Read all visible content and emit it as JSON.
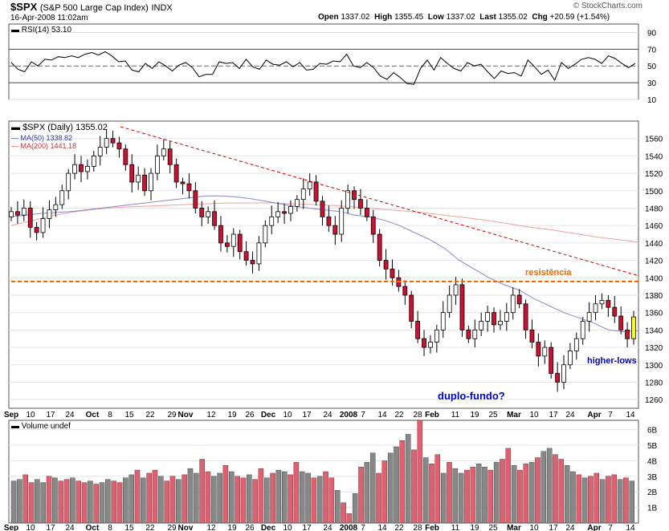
{
  "header": {
    "symbol": "$SPX",
    "name": "(S&P 500 Large Cap Index)",
    "exchange": "INDX",
    "datetime": "16-Apr-2008 11:02am",
    "open_label": "Open",
    "open": "1337.02",
    "high_label": "High",
    "high": "1355.45",
    "low_label": "Low",
    "low": "1337.02",
    "last_label": "Last",
    "last": "1355.02",
    "chg_label": "Chg",
    "chg": "+20.59 (+1.54%)",
    "watermark": "© StockCharts.com"
  },
  "rsi_panel": {
    "label": "RSI(14) 53.10",
    "ticks": [
      "90",
      "70",
      "50",
      "30",
      "10"
    ]
  },
  "price_panel": {
    "label": "$SPX (Daily) 1355.02",
    "ma50_label": "MA(50) 1338.82",
    "ma200_label": "MA(200) 1441.18",
    "annotations": {
      "resistance": "resistência",
      "double_bottom": "duplo-fundo?",
      "higher_lows": "higher-lows"
    }
  },
  "volume_panel": {
    "label": "Volume undef",
    "ticks": [
      "6B",
      "5B",
      "4B",
      "3B",
      "2B",
      "1B"
    ]
  },
  "x_axis": {
    "labels": [
      "Sep",
      "10",
      "17",
      "24",
      "Oct",
      "8",
      "15",
      "22",
      "29",
      "Nov",
      "12",
      "19",
      "26",
      "Dec",
      "10",
      "17",
      "24",
      "2008",
      "7",
      "14",
      "22",
      "28",
      "Feb",
      "11",
      "19",
      "25",
      "Mar",
      "10",
      "17",
      "24",
      "Apr",
      "7",
      "14"
    ]
  },
  "colors": {
    "up": "#ffffff",
    "down": "#cc1133",
    "ma50": "#8888cc",
    "ma200": "#f0a0a0",
    "resistance": "#ff6600",
    "trendline": "#cc0000",
    "annotation_blue": "#0000cc",
    "volume_up": "#888888",
    "volume_down": "#e06070",
    "last_candle": "#ffff00"
  },
  "chart_data": [
    {
      "type": "line",
      "title": "RSI(14) 53.10",
      "ylim": [
        10,
        100
      ],
      "yticks": [
        90,
        70,
        50,
        30,
        10
      ],
      "grid": true,
      "series": [
        {
          "name": "RSI(14)",
          "values": [
            54,
            46,
            43,
            55,
            50,
            58,
            57,
            61,
            60,
            62,
            60,
            64,
            66,
            63,
            67,
            62,
            55,
            56,
            45,
            43,
            53,
            47,
            55,
            50,
            44,
            51,
            54,
            48,
            37,
            40,
            40,
            55,
            53,
            54,
            47,
            58,
            49,
            46,
            57,
            52,
            51,
            55,
            49,
            54,
            45,
            46,
            53,
            52,
            56,
            55,
            64,
            50,
            48,
            54,
            48,
            38,
            34,
            42,
            36,
            29,
            28,
            47,
            57,
            45,
            60,
            53,
            47,
            44,
            54,
            50,
            52,
            43,
            35,
            44,
            41,
            42,
            38,
            57,
            49,
            40,
            45,
            33,
            54,
            47,
            52,
            58,
            60,
            58,
            53,
            62,
            59,
            53,
            48,
            53
          ]
        }
      ]
    },
    {
      "type": "candlestick",
      "title": "$SPX (Daily) 1355.02",
      "ylim": [
        1250,
        1580
      ],
      "yticks": [
        1560,
        1540,
        1520,
        1500,
        1480,
        1460,
        1440,
        1420,
        1400,
        1380,
        1360,
        1340,
        1320,
        1300,
        1280,
        1260
      ],
      "grid": true,
      "resistance_level": 1388,
      "series": [
        {
          "name": "SPX",
          "values": [
            1476,
            1472,
            1480,
            1458,
            1452,
            1468,
            1478,
            1484,
            1500,
            1520,
            1530,
            1522,
            1528,
            1540,
            1550,
            1560,
            1555,
            1548,
            1530,
            1510,
            1518,
            1500,
            1520,
            1540,
            1548,
            1530,
            1510,
            1508,
            1500,
            1480,
            1470,
            1476,
            1460,
            1440,
            1436,
            1450,
            1430,
            1420,
            1416,
            1440,
            1460,
            1470,
            1476,
            1474,
            1482,
            1490,
            1502,
            1510,
            1488,
            1470,
            1460,
            1450,
            1480,
            1500,
            1490,
            1480,
            1470,
            1450,
            1420,
            1410,
            1400,
            1390,
            1380,
            1350,
            1330,
            1320,
            1326,
            1340,
            1360,
            1380,
            1392,
            1340,
            1330,
            1340,
            1350,
            1360,
            1346,
            1350,
            1360,
            1380,
            1370,
            1340,
            1326,
            1310,
            1320,
            1290,
            1280,
            1300,
            1316,
            1330,
            1350,
            1360,
            1370,
            1374,
            1366,
            1356,
            1340,
            1330,
            1355
          ]
        },
        {
          "name": "MA(50) 1338.82",
          "values": [
            1470,
            1472,
            1474,
            1475,
            1476,
            1478,
            1480,
            1482,
            1484,
            1486,
            1488,
            1490,
            1492,
            1494,
            1494,
            1493,
            1491,
            1488,
            1485,
            1482,
            1480,
            1478,
            1476,
            1472,
            1470,
            1466,
            1460,
            1452,
            1444,
            1434,
            1420,
            1410,
            1400,
            1392,
            1386,
            1376,
            1368,
            1360,
            1354,
            1348,
            1340,
            1338,
            1339
          ]
        },
        {
          "name": "MA(200) 1441.18",
          "values": [
            1460,
            1466,
            1472,
            1476,
            1479,
            1481,
            1482,
            1483,
            1484,
            1485,
            1486,
            1486,
            1486,
            1485,
            1484,
            1483,
            1481,
            1479,
            1477,
            1475,
            1472,
            1469,
            1466,
            1462,
            1458,
            1455,
            1451,
            1447,
            1444,
            1441
          ]
        }
      ]
    },
    {
      "type": "bar",
      "title": "Volume undef",
      "ylim": [
        0,
        6.6
      ],
      "ylabel": "",
      "yticks": [
        6,
        5,
        4,
        3,
        2,
        1
      ],
      "series": [
        {
          "name": "Volume",
          "values": [
            2.7,
            2.8,
            3.1,
            2.6,
            2.8,
            2.6,
            3.0,
            2.9,
            2.7,
            2.8,
            2.9,
            2.7,
            2.6,
            2.7,
            2.5,
            2.6,
            2.8,
            2.7,
            2.6,
            2.9,
            3.1,
            3.4,
            2.9,
            3.2,
            3.4,
            3.0,
            2.7,
            3.0,
            2.8,
            3.1,
            3.5,
            3.2,
            4.1,
            3.3,
            3.0,
            3.2,
            3.7,
            3.3,
            3.0,
            2.9,
            3.1,
            2.8,
            3.5,
            2.9,
            3.2,
            3.4,
            3.3,
            3.1,
            3.9,
            3.3,
            3.2,
            2.9,
            3.0,
            3.3,
            2.9,
            2.1,
            1.3,
            0.6,
            1.9,
            3.6,
            3.9,
            4.5,
            3.2,
            4.0,
            4.5,
            4.9,
            5.3,
            5.7,
            4.7,
            6.6,
            4.2,
            3.8,
            4.4,
            3.2,
            3.9,
            3.5,
            3.2,
            3.4,
            3.6,
            3.8,
            3.6,
            3.4,
            3.9,
            4.1,
            4.8,
            3.7,
            3.4,
            3.8,
            3.9,
            4.2,
            4.6,
            4.8,
            4.4,
            4.1,
            3.7,
            3.3,
            3.1,
            2.9,
            3.0,
            3.2,
            2.8,
            3.0,
            3.1,
            2.8,
            2.9,
            2.7
          ]
        }
      ]
    }
  ]
}
